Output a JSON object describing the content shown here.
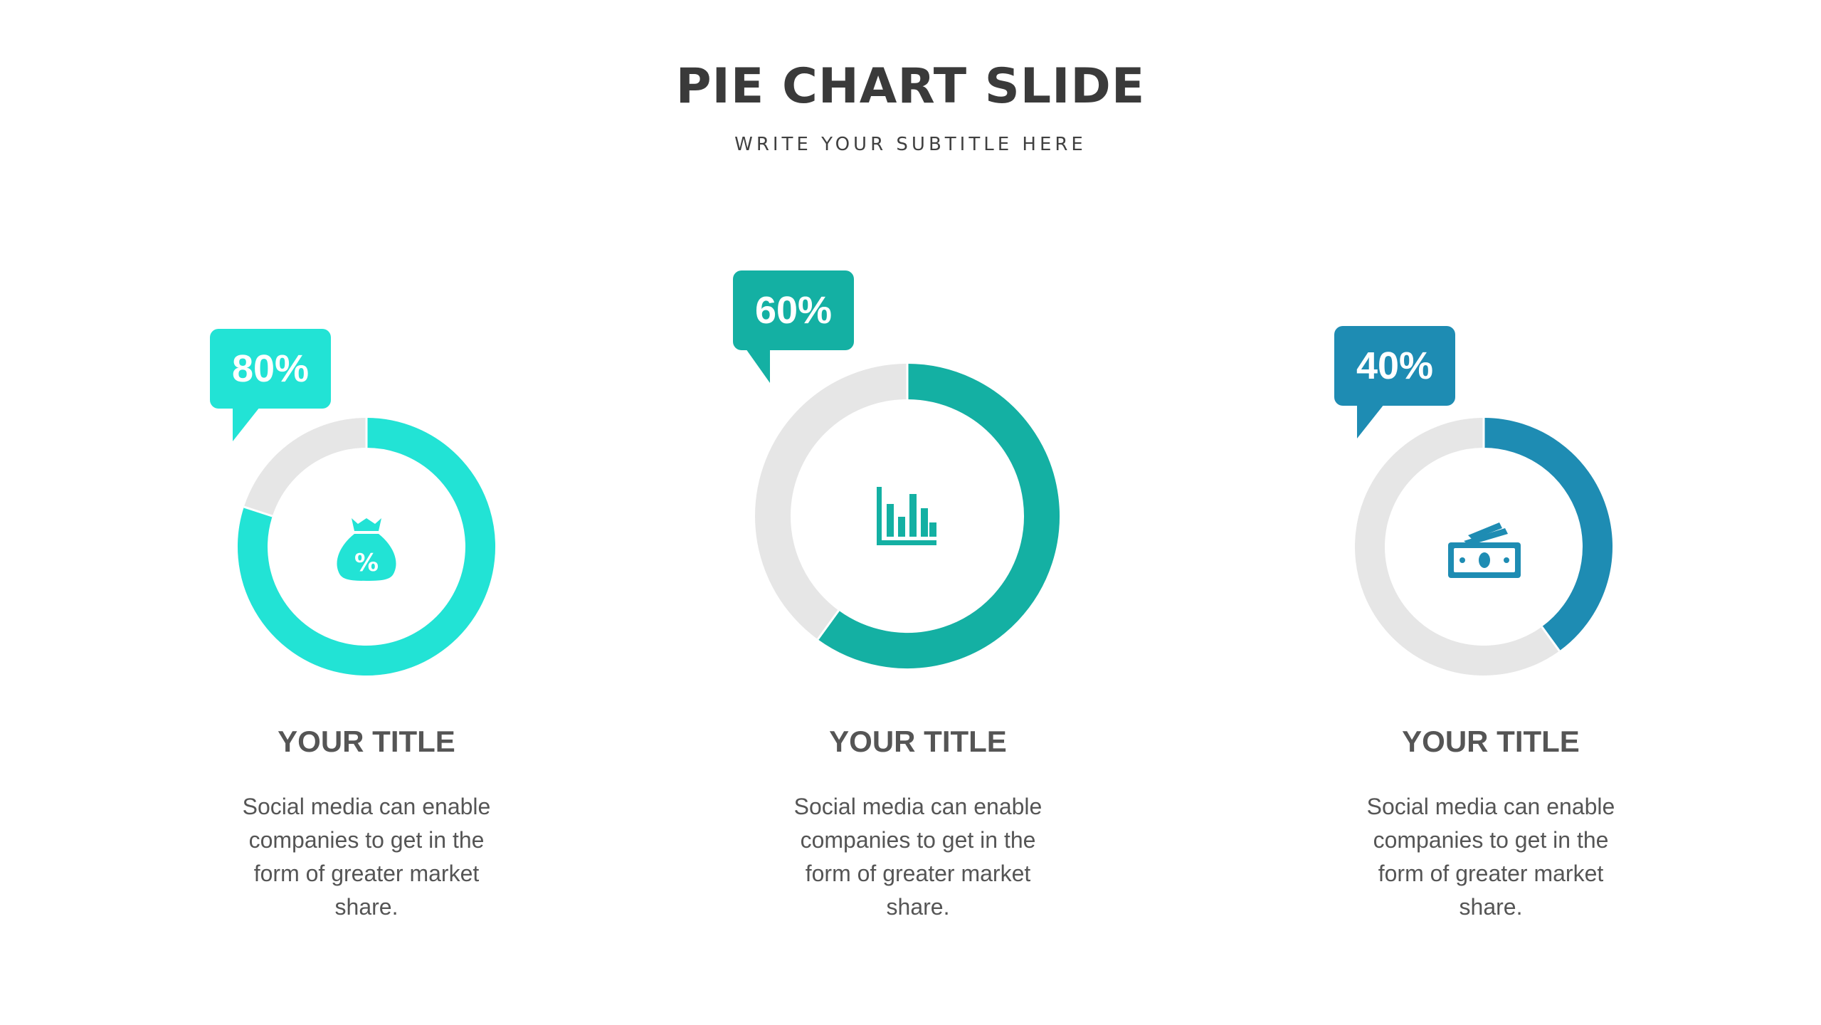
{
  "slide": {
    "title": "PIE CHART SLIDE",
    "subtitle": "WRITE YOUR SUBTITLE HERE"
  },
  "colors": {
    "track": "#e6e6e6",
    "panel_1": "#22e3d5",
    "panel_2": "#14b0a3",
    "panel_3": "#1e8cb3",
    "text": "#555555"
  },
  "chart_data": {
    "type": "pie",
    "items": [
      {
        "label": "80%",
        "value": 80,
        "title": "YOUR TITLE",
        "icon": "money-bag-percent-icon",
        "color": "#22e3d5",
        "body": [
          "Social media can enable",
          "companies to get in the",
          "form of greater market",
          "share."
        ]
      },
      {
        "label": "60%",
        "value": 60,
        "title": "YOUR TITLE",
        "icon": "bar-chart-icon",
        "color": "#14b0a3",
        "body": [
          "Social media can enable",
          "companies to get in the",
          "form of greater market",
          "share."
        ]
      },
      {
        "label": "40%",
        "value": 40,
        "title": "YOUR TITLE",
        "icon": "cash-stack-icon",
        "color": "#1e8cb3",
        "body": [
          "Social media can enable",
          "companies to get in the",
          "form of greater market",
          "share."
        ]
      }
    ]
  }
}
